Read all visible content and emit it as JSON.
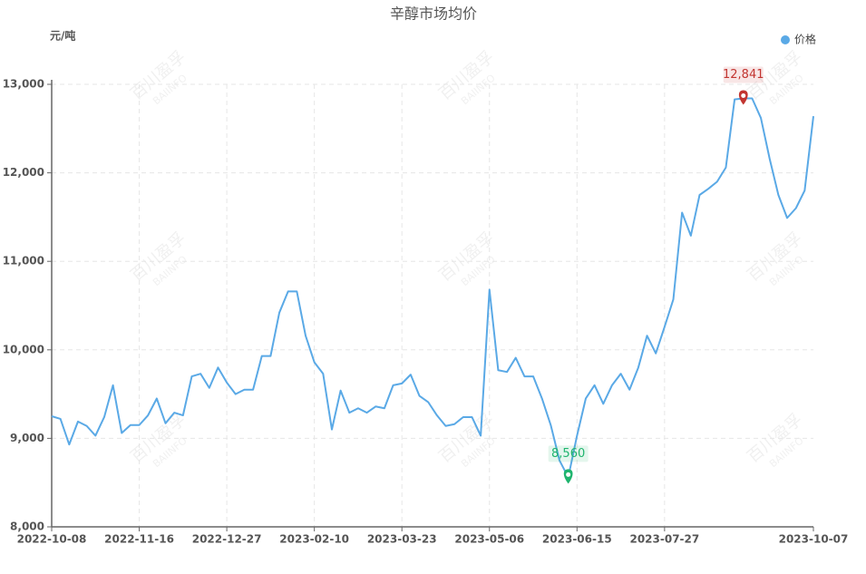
{
  "chart_data": {
    "type": "line",
    "title": "辛醇市场均价",
    "y_axis_label": "元/吨",
    "watermark": [
      "百川盈孚",
      "BAIINFO"
    ],
    "categories": [
      "2022-10-08",
      null,
      null,
      null,
      null,
      null,
      null,
      null,
      null,
      null,
      "2022-11-16",
      null,
      null,
      null,
      null,
      null,
      null,
      null,
      null,
      null,
      "2022-12-27",
      null,
      null,
      null,
      null,
      null,
      null,
      null,
      null,
      null,
      "2023-02-10",
      null,
      null,
      null,
      null,
      null,
      null,
      null,
      null,
      null,
      "2023-03-23",
      null,
      null,
      null,
      null,
      null,
      null,
      null,
      null,
      null,
      "2023-05-06",
      null,
      null,
      null,
      null,
      null,
      null,
      null,
      null,
      null,
      "2023-06-15",
      null,
      null,
      null,
      null,
      null,
      null,
      null,
      null,
      null,
      "2023-07-27",
      null,
      null,
      null,
      null,
      null,
      null,
      null,
      null,
      null,
      null,
      null,
      null,
      null,
      null,
      null,
      null,
      "2023-10-07"
    ],
    "series": [
      {
        "name": "价格",
        "color": "#5aa9e6",
        "values": [
          9250,
          9220,
          8930,
          9190,
          9140,
          9030,
          9240,
          9600,
          9060,
          9150,
          9150,
          9260,
          9450,
          9170,
          9290,
          9260,
          9700,
          9730,
          9570,
          9800,
          9630,
          9500,
          9550,
          9550,
          9930,
          9930,
          10420,
          10660,
          10660,
          10160,
          9860,
          9730,
          9100,
          9540,
          9290,
          9340,
          9290,
          9360,
          9340,
          9600,
          9620,
          9720,
          9480,
          9410,
          9260,
          9140,
          9160,
          9240,
          9240,
          9030,
          10680,
          9770,
          9750,
          9910,
          9700,
          9700,
          9450,
          9150,
          8750,
          8560,
          9030,
          9450,
          9600,
          9390,
          9600,
          9730,
          9550,
          9800,
          10160,
          9960,
          10260,
          10570,
          11550,
          11290,
          11750,
          11820,
          11900,
          12060,
          12830,
          12841,
          12841,
          12620,
          12160,
          11750,
          11490,
          11600,
          11800,
          12640
        ]
      }
    ],
    "point_labels": [
      {
        "index": 79,
        "label": "12,841",
        "color": "#c23531"
      },
      {
        "index": 59,
        "label": "8,560",
        "color": "#1fb46e"
      }
    ],
    "ylim": [
      8000,
      13000
    ],
    "yticks": [
      {
        "value": 8000,
        "label": "8,000"
      },
      {
        "value": 9000,
        "label": "9,000"
      },
      {
        "value": 10000,
        "label": "10,000"
      },
      {
        "value": 11000,
        "label": "11,000"
      },
      {
        "value": 12000,
        "label": "12,000"
      },
      {
        "value": 13000,
        "label": "13,000"
      }
    ],
    "grid": true,
    "legend": "top-right"
  }
}
